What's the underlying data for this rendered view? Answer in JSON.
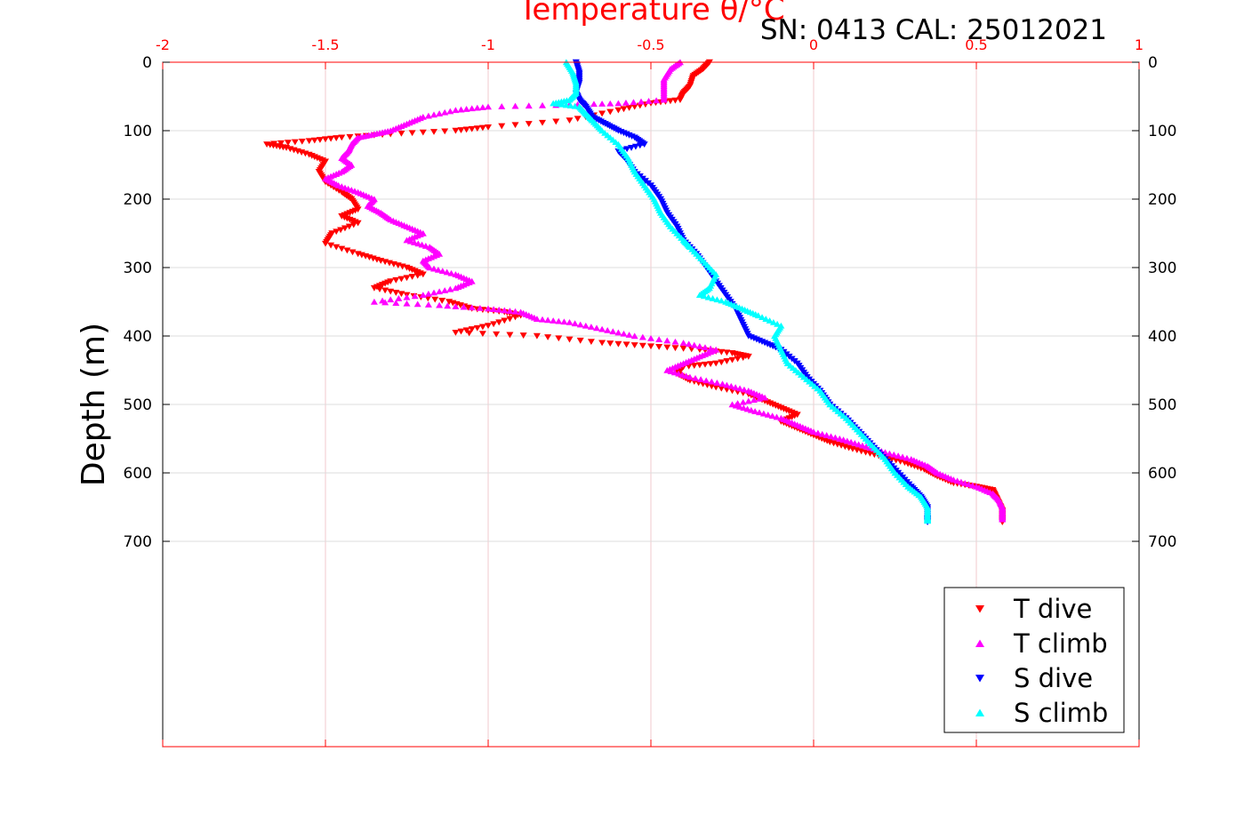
{
  "chart_data": {
    "type": "scatter",
    "title": "Temperature θ/°C",
    "annotation": "SN: 0413  CAL: 25012021",
    "xlabel": "Temperature θ/°C",
    "ylabel": "Depth (m)",
    "xlim": [
      -2,
      1
    ],
    "ylim": [
      0,
      1000
    ],
    "y_reversed": true,
    "x_axis_position": "top",
    "grid": true,
    "legend_position": "bottom-right",
    "x_ticks": [
      -2,
      -1.5,
      -1,
      -0.5,
      0,
      0.5,
      1
    ],
    "x_tick_labels": [
      "-2",
      "-1.5",
      "-1",
      "-0.5",
      "0",
      "0.5",
      "1"
    ],
    "y_ticks": [
      0,
      100,
      200,
      300,
      400,
      500,
      600,
      700
    ],
    "y_tick_labels": [
      "0",
      "100",
      "200",
      "300",
      "400",
      "500",
      "600",
      "700"
    ],
    "series": [
      {
        "name": "T dive",
        "color": "#ff0000",
        "marker": "triangle-down",
        "points": [
          [
            -0.32,
            0
          ],
          [
            -0.34,
            10
          ],
          [
            -0.37,
            20
          ],
          [
            -0.38,
            35
          ],
          [
            -0.4,
            45
          ],
          [
            -0.41,
            55
          ],
          [
            -0.5,
            60
          ],
          [
            -0.6,
            70
          ],
          [
            -0.75,
            85
          ],
          [
            -1.0,
            95
          ],
          [
            -1.1,
            100
          ],
          [
            -1.3,
            105
          ],
          [
            -1.45,
            110
          ],
          [
            -1.55,
            115
          ],
          [
            -1.68,
            120
          ],
          [
            -1.62,
            125
          ],
          [
            -1.55,
            135
          ],
          [
            -1.5,
            145
          ],
          [
            -1.52,
            160
          ],
          [
            -1.5,
            175
          ],
          [
            -1.45,
            190
          ],
          [
            -1.42,
            200
          ],
          [
            -1.4,
            215
          ],
          [
            -1.45,
            225
          ],
          [
            -1.4,
            235
          ],
          [
            -1.48,
            250
          ],
          [
            -1.5,
            265
          ],
          [
            -1.4,
            280
          ],
          [
            -1.33,
            290
          ],
          [
            -1.25,
            300
          ],
          [
            -1.2,
            310
          ],
          [
            -1.3,
            320
          ],
          [
            -1.35,
            330
          ],
          [
            -1.25,
            340
          ],
          [
            -1.12,
            350
          ],
          [
            -1.05,
            360
          ],
          [
            -0.95,
            365
          ],
          [
            -0.9,
            370
          ],
          [
            -1.0,
            385
          ],
          [
            -1.1,
            395
          ],
          [
            -0.85,
            400
          ],
          [
            -0.65,
            410
          ],
          [
            -0.5,
            415
          ],
          [
            -0.35,
            420
          ],
          [
            -0.25,
            425
          ],
          [
            -0.2,
            430
          ],
          [
            -0.3,
            440
          ],
          [
            -0.4,
            445
          ],
          [
            -0.42,
            455
          ],
          [
            -0.38,
            465
          ],
          [
            -0.3,
            475
          ],
          [
            -0.2,
            485
          ],
          [
            -0.15,
            495
          ],
          [
            -0.1,
            505
          ],
          [
            -0.05,
            515
          ],
          [
            -0.1,
            525
          ],
          [
            -0.05,
            535
          ],
          [
            0.0,
            545
          ],
          [
            0.05,
            555
          ],
          [
            0.12,
            565
          ],
          [
            0.2,
            575
          ],
          [
            0.28,
            585
          ],
          [
            0.34,
            595
          ],
          [
            0.38,
            605
          ],
          [
            0.43,
            615
          ],
          [
            0.5,
            620
          ],
          [
            0.55,
            625
          ],
          [
            0.56,
            635
          ],
          [
            0.57,
            645
          ],
          [
            0.58,
            655
          ],
          [
            0.58,
            665
          ],
          [
            0.58,
            672
          ]
        ]
      },
      {
        "name": "T climb",
        "color": "#ff00ff",
        "marker": "triangle-up",
        "points": [
          [
            -0.41,
            0
          ],
          [
            -0.44,
            10
          ],
          [
            -0.46,
            25
          ],
          [
            -0.46,
            40
          ],
          [
            -0.46,
            55
          ],
          [
            -0.6,
            60
          ],
          [
            -0.75,
            62
          ],
          [
            -1.0,
            65
          ],
          [
            -1.1,
            70
          ],
          [
            -1.2,
            80
          ],
          [
            -1.25,
            90
          ],
          [
            -1.3,
            100
          ],
          [
            -1.35,
            105
          ],
          [
            -1.4,
            110
          ],
          [
            -1.42,
            120
          ],
          [
            -1.43,
            130
          ],
          [
            -1.45,
            140
          ],
          [
            -1.42,
            150
          ],
          [
            -1.45,
            160
          ],
          [
            -1.5,
            170
          ],
          [
            -1.46,
            180
          ],
          [
            -1.4,
            190
          ],
          [
            -1.35,
            200
          ],
          [
            -1.37,
            210
          ],
          [
            -1.33,
            220
          ],
          [
            -1.3,
            230
          ],
          [
            -1.25,
            240
          ],
          [
            -1.2,
            250
          ],
          [
            -1.25,
            260
          ],
          [
            -1.18,
            270
          ],
          [
            -1.15,
            280
          ],
          [
            -1.2,
            290
          ],
          [
            -1.18,
            300
          ],
          [
            -1.1,
            310
          ],
          [
            -1.05,
            320
          ],
          [
            -1.1,
            330
          ],
          [
            -1.2,
            340
          ],
          [
            -1.35,
            350
          ],
          [
            -1.15,
            355
          ],
          [
            -1.0,
            360
          ],
          [
            -0.9,
            365
          ],
          [
            -0.85,
            375
          ],
          [
            -0.75,
            380
          ],
          [
            -0.65,
            390
          ],
          [
            -0.55,
            400
          ],
          [
            -0.4,
            410
          ],
          [
            -0.3,
            420
          ],
          [
            -0.35,
            430
          ],
          [
            -0.4,
            440
          ],
          [
            -0.45,
            450
          ],
          [
            -0.38,
            460
          ],
          [
            -0.28,
            470
          ],
          [
            -0.2,
            480
          ],
          [
            -0.15,
            490
          ],
          [
            -0.25,
            500
          ],
          [
            -0.18,
            510
          ],
          [
            -0.1,
            520
          ],
          [
            -0.05,
            530
          ],
          [
            0.0,
            540
          ],
          [
            0.08,
            550
          ],
          [
            0.15,
            560
          ],
          [
            0.22,
            570
          ],
          [
            0.3,
            580
          ],
          [
            0.35,
            590
          ],
          [
            0.38,
            600
          ],
          [
            0.43,
            610
          ],
          [
            0.5,
            620
          ],
          [
            0.55,
            630
          ],
          [
            0.57,
            640
          ],
          [
            0.58,
            650
          ],
          [
            0.58,
            660
          ],
          [
            0.58,
            668
          ]
        ]
      },
      {
        "name": "S dive",
        "color": "#0000ff",
        "marker": "triangle-down",
        "points": [
          [
            -0.73,
            0
          ],
          [
            -0.72,
            15
          ],
          [
            -0.72,
            30
          ],
          [
            -0.73,
            45
          ],
          [
            -0.72,
            55
          ],
          [
            -0.7,
            65
          ],
          [
            -0.68,
            80
          ],
          [
            -0.64,
            90
          ],
          [
            -0.6,
            100
          ],
          [
            -0.55,
            110
          ],
          [
            -0.52,
            120
          ],
          [
            -0.6,
            130
          ],
          [
            -0.58,
            140
          ],
          [
            -0.55,
            160
          ],
          [
            -0.5,
            180
          ],
          [
            -0.47,
            200
          ],
          [
            -0.45,
            220
          ],
          [
            -0.42,
            240
          ],
          [
            -0.4,
            260
          ],
          [
            -0.36,
            280
          ],
          [
            -0.33,
            300
          ],
          [
            -0.3,
            320
          ],
          [
            -0.27,
            340
          ],
          [
            -0.24,
            360
          ],
          [
            -0.22,
            380
          ],
          [
            -0.2,
            400
          ],
          [
            -0.15,
            410
          ],
          [
            -0.1,
            420
          ],
          [
            -0.05,
            440
          ],
          [
            -0.02,
            460
          ],
          [
            0.02,
            480
          ],
          [
            0.05,
            500
          ],
          [
            0.1,
            520
          ],
          [
            0.14,
            540
          ],
          [
            0.18,
            560
          ],
          [
            0.22,
            580
          ],
          [
            0.26,
            600
          ],
          [
            0.3,
            620
          ],
          [
            0.33,
            635
          ],
          [
            0.35,
            650
          ],
          [
            0.35,
            665
          ],
          [
            0.35,
            672
          ]
        ]
      },
      {
        "name": "S climb",
        "color": "#00ffff",
        "marker": "triangle-up",
        "points": [
          [
            -0.76,
            0
          ],
          [
            -0.74,
            15
          ],
          [
            -0.73,
            30
          ],
          [
            -0.73,
            45
          ],
          [
            -0.75,
            55
          ],
          [
            -0.8,
            60
          ],
          [
            -0.72,
            65
          ],
          [
            -0.7,
            75
          ],
          [
            -0.68,
            85
          ],
          [
            -0.65,
            100
          ],
          [
            -0.6,
            120
          ],
          [
            -0.57,
            140
          ],
          [
            -0.55,
            160
          ],
          [
            -0.52,
            180
          ],
          [
            -0.49,
            200
          ],
          [
            -0.47,
            220
          ],
          [
            -0.44,
            240
          ],
          [
            -0.4,
            260
          ],
          [
            -0.38,
            270
          ],
          [
            -0.34,
            290
          ],
          [
            -0.3,
            310
          ],
          [
            -0.32,
            330
          ],
          [
            -0.35,
            340
          ],
          [
            -0.27,
            350
          ],
          [
            -0.22,
            360
          ],
          [
            -0.17,
            370
          ],
          [
            -0.1,
            385
          ],
          [
            -0.12,
            400
          ],
          [
            -0.1,
            420
          ],
          [
            -0.08,
            440
          ],
          [
            -0.03,
            460
          ],
          [
            0.02,
            480
          ],
          [
            0.05,
            500
          ],
          [
            0.1,
            520
          ],
          [
            0.14,
            540
          ],
          [
            0.18,
            560
          ],
          [
            0.22,
            580
          ],
          [
            0.25,
            600
          ],
          [
            0.29,
            620
          ],
          [
            0.33,
            635
          ],
          [
            0.35,
            650
          ],
          [
            0.35,
            665
          ],
          [
            0.35,
            670
          ]
        ]
      }
    ]
  }
}
